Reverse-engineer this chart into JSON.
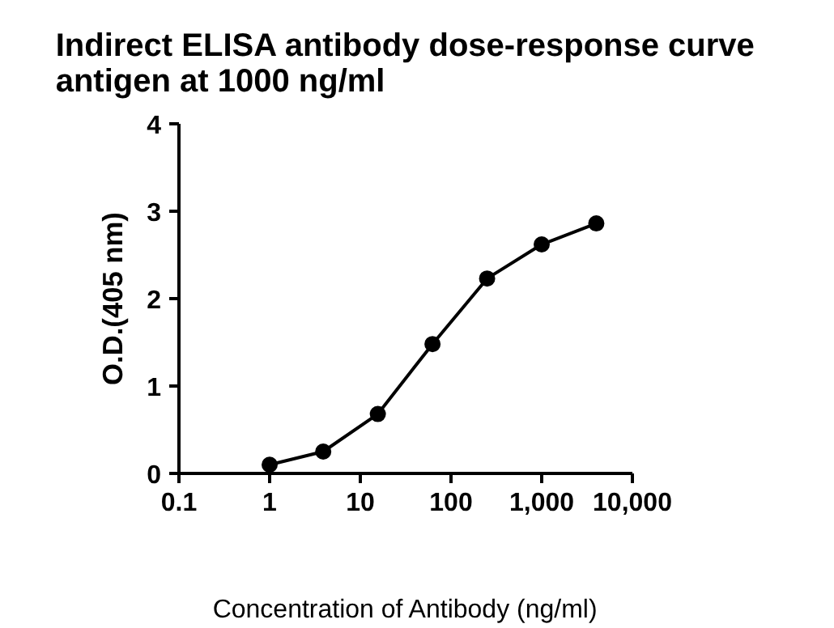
{
  "chart_data": {
    "type": "line",
    "title": "Indirect ELISA antibody dose-response curve\nantigen at 1000 ng/ml",
    "xlabel": "Concentration of Antibody (ng/ml)",
    "ylabel": "O.D.(405 nm)",
    "x": [
      1,
      3.9,
      15.6,
      62.5,
      250,
      1000,
      4000
    ],
    "series": [
      {
        "color": "#000000",
        "values": [
          0.1,
          0.25,
          0.68,
          1.48,
          2.23,
          2.62,
          2.86
        ]
      }
    ],
    "log": "x",
    "xlim": [
      0.1,
      10000
    ],
    "xticks": [
      0.1,
      1,
      10,
      100,
      {
        "value": 1000,
        "label": "1,000"
      },
      {
        "value": 10000,
        "label": "10,000"
      }
    ],
    "ylim": [
      0,
      4
    ],
    "yticks": [
      0,
      1,
      2,
      3,
      4
    ],
    "grid": false,
    "marker": "circle",
    "line_style": "solid"
  }
}
